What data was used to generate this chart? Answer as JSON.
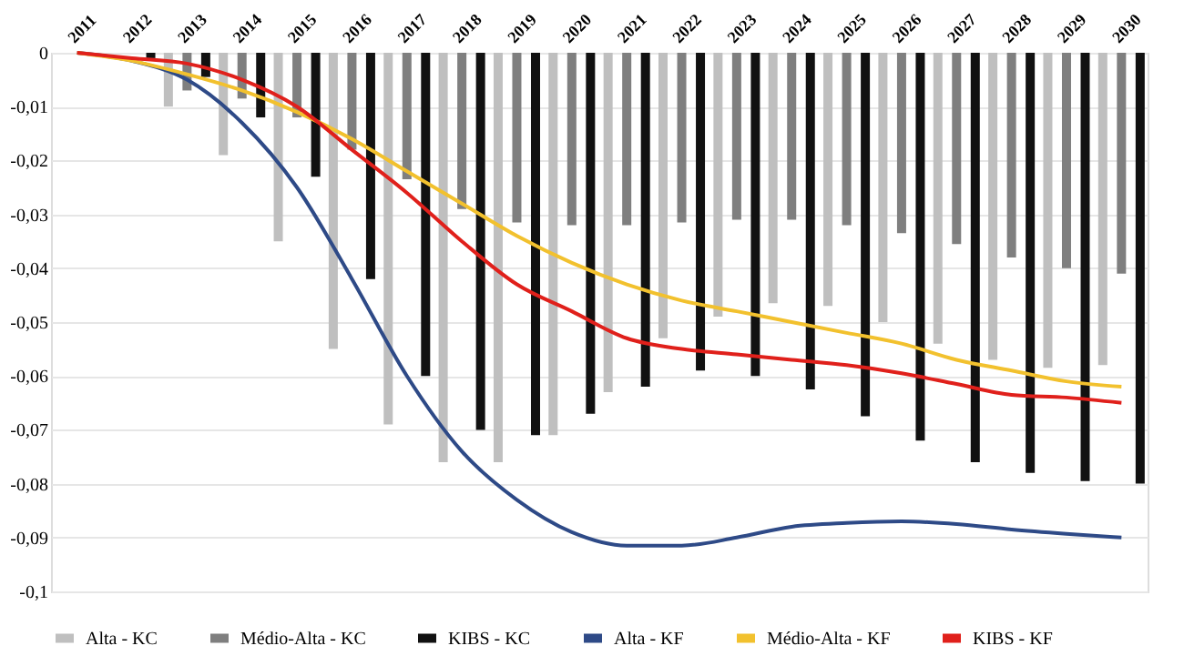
{
  "chart_data": {
    "type": "bar",
    "categories": [
      "2011",
      "2012",
      "2013",
      "2014",
      "2015",
      "2016",
      "2017",
      "2018",
      "2019",
      "2020",
      "2021",
      "2022",
      "2023",
      "2024",
      "2025",
      "2026",
      "2027",
      "2028",
      "2029",
      "2030"
    ],
    "series": [
      {
        "name": "Alta - KC",
        "color": "#bfbfbf",
        "values": [
          0,
          null,
          -0.01,
          -0.019,
          -0.035,
          -0.055,
          -0.069,
          -0.076,
          -0.076,
          -0.071,
          -0.063,
          -0.053,
          -0.049,
          -0.0465,
          -0.047,
          -0.05,
          -0.054,
          -0.057,
          -0.0585,
          -0.058
        ]
      },
      {
        "name": "Médio-Alta - KC",
        "color": "#7f7f7f",
        "values": [
          0,
          null,
          -0.007,
          -0.0085,
          -0.012,
          -0.018,
          -0.0235,
          -0.029,
          -0.0315,
          -0.032,
          -0.032,
          -0.0315,
          -0.031,
          -0.031,
          -0.032,
          -0.0335,
          -0.0355,
          -0.038,
          -0.04,
          -0.041
        ]
      },
      {
        "name": "KIBS - KC",
        "color": "#111111",
        "values": [
          0,
          -0.001,
          -0.0045,
          -0.012,
          -0.023,
          -0.042,
          -0.06,
          -0.07,
          -0.071,
          -0.067,
          -0.062,
          -0.059,
          -0.06,
          -0.0625,
          -0.0675,
          -0.072,
          -0.076,
          -0.078,
          -0.0795,
          -0.08
        ]
      },
      {
        "name": "Alta - KF",
        "type": "line",
        "color": "#2e4a87",
        "values": [
          0,
          -0.0015,
          -0.005,
          -0.013,
          -0.025,
          -0.042,
          -0.06,
          -0.074,
          -0.083,
          -0.089,
          -0.0915,
          -0.0915,
          -0.09,
          -0.088,
          -0.0873,
          -0.087,
          -0.0875,
          -0.0885,
          -0.0893,
          -0.09
        ]
      },
      {
        "name": "Médio-Alta - KF",
        "type": "line",
        "color": "#f2c12e",
        "values": [
          0,
          -0.0015,
          -0.004,
          -0.007,
          -0.011,
          -0.016,
          -0.022,
          -0.028,
          -0.034,
          -0.039,
          -0.043,
          -0.046,
          -0.048,
          -0.05,
          -0.052,
          -0.054,
          -0.057,
          -0.059,
          -0.061,
          -0.062
        ]
      },
      {
        "name": "KIBS - KF",
        "type": "line",
        "color": "#e0201b",
        "values": [
          0,
          -0.001,
          -0.002,
          -0.005,
          -0.01,
          -0.018,
          -0.026,
          -0.035,
          -0.043,
          -0.048,
          -0.053,
          -0.055,
          -0.056,
          -0.057,
          -0.058,
          -0.0595,
          -0.0615,
          -0.0635,
          -0.064,
          -0.065
        ]
      }
    ],
    "ylim": [
      -0.1,
      0
    ],
    "yticks": [
      {
        "value": -0.1,
        "label": "-0,1"
      },
      {
        "value": -0.09,
        "label": "-0,09"
      },
      {
        "value": -0.08,
        "label": "-0,08"
      },
      {
        "value": -0.07,
        "label": "-0,07"
      },
      {
        "value": -0.06,
        "label": "-0,06"
      },
      {
        "value": -0.05,
        "label": "-0,05"
      },
      {
        "value": -0.04,
        "label": "-0,04"
      },
      {
        "value": -0.03,
        "label": "-0,03"
      },
      {
        "value": -0.02,
        "label": "-0,02"
      },
      {
        "value": -0.01,
        "label": "-0,01"
      },
      0
    ],
    "grid": "y",
    "legend": "bottom",
    "marker": "none",
    "line_style": "solid"
  }
}
